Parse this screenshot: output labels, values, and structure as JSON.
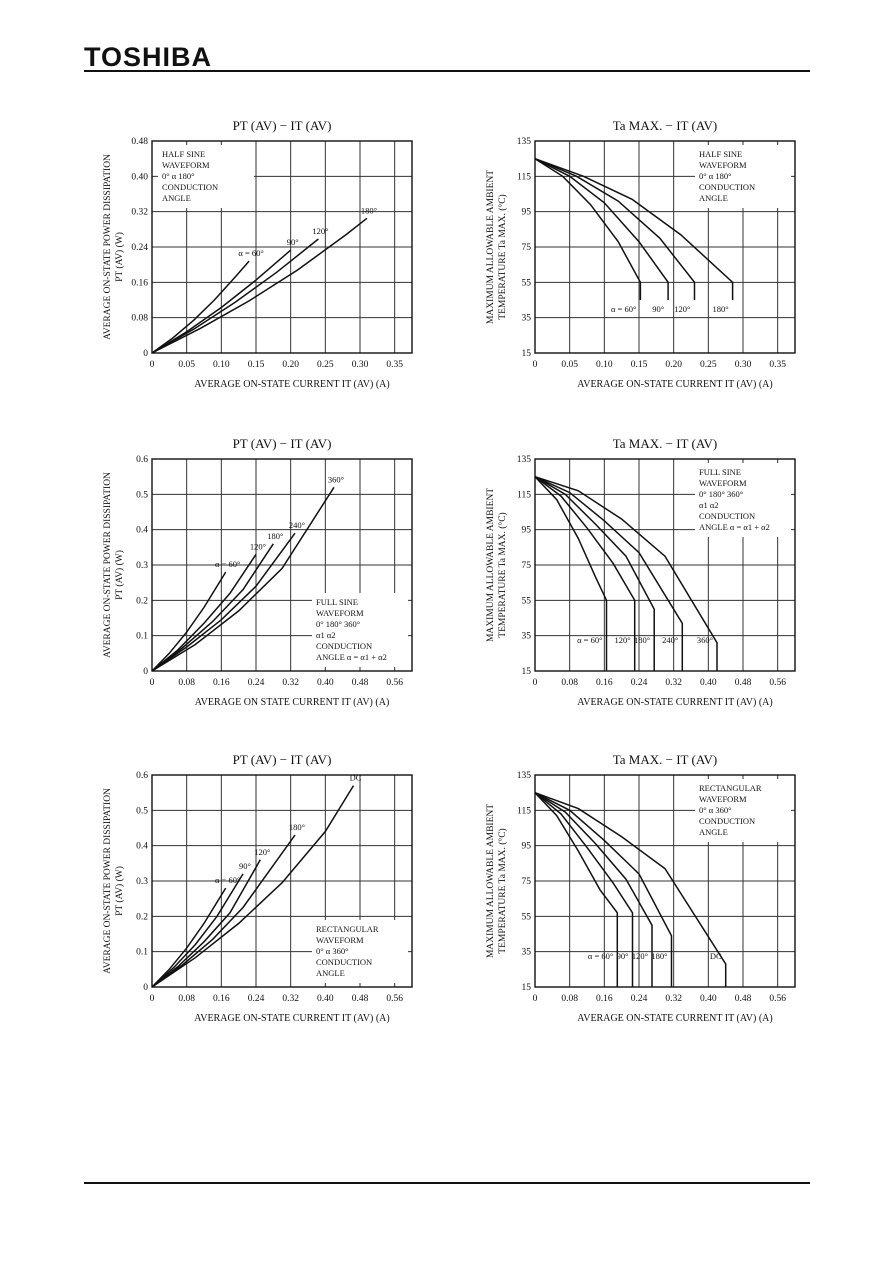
{
  "header": {
    "brand": "TOSHIBA"
  },
  "chart_data": [
    {
      "type": "line",
      "title": "PT (AV) − IT (AV)",
      "xlabel": "AVERAGE ON-STATE CURRENT  IT (AV)  (A)",
      "ylabel_lines": [
        "AVERAGE ON-STATE POWER DISSIPATION",
        "PT (AV)  (W)"
      ],
      "xlim": [
        0,
        0.375
      ],
      "ylim": [
        0,
        0.48
      ],
      "xticks": [
        0,
        0.05,
        0.1,
        0.15,
        0.2,
        0.25,
        0.3,
        0.35
      ],
      "xtick_labels": [
        "0",
        "0.05",
        "0.10",
        "0.15",
        "0.20",
        "0.25",
        "0.30",
        "0.35"
      ],
      "yticks": [
        0,
        0.08,
        0.16,
        0.24,
        0.32,
        0.4,
        0.48
      ],
      "ytick_labels": [
        "0",
        "0.08",
        "0.16",
        "0.24",
        "0.32",
        "0.40",
        "0.48"
      ],
      "annotation_lines": [
        "HALF SINE",
        "WAVEFORM",
        "0°  α  180°",
        "CONDUCTION",
        "ANGLE"
      ],
      "series": [
        {
          "label": "α = 60°",
          "x": [
            0,
            0.03,
            0.06,
            0.09,
            0.12,
            0.14
          ],
          "y": [
            0,
            0.034,
            0.074,
            0.12,
            0.172,
            0.208
          ]
        },
        {
          "label": "90°",
          "x": [
            0,
            0.05,
            0.1,
            0.15,
            0.2
          ],
          "y": [
            0,
            0.048,
            0.103,
            0.165,
            0.233
          ]
        },
        {
          "label": "120°",
          "x": [
            0,
            0.06,
            0.12,
            0.18,
            0.24
          ],
          "y": [
            0,
            0.054,
            0.115,
            0.183,
            0.258
          ]
        },
        {
          "label": "180°",
          "x": [
            0,
            0.07,
            0.14,
            0.21,
            0.28,
            0.31
          ],
          "y": [
            0,
            0.056,
            0.118,
            0.188,
            0.268,
            0.305
          ]
        }
      ]
    },
    {
      "type": "line",
      "title": "Ta MAX. − IT (AV)",
      "xlabel": "AVERAGE ON-STATE CURRENT  IT (AV)  (A)",
      "ylabel_lines": [
        "MAXIMUM ALLOWABLE AMBIENT",
        "TEMPERATURE  Ta MAX.  (°C)"
      ],
      "xlim": [
        0,
        0.375
      ],
      "ylim": [
        15,
        135
      ],
      "xticks": [
        0,
        0.05,
        0.1,
        0.15,
        0.2,
        0.25,
        0.3,
        0.35
      ],
      "xtick_labels": [
        "0",
        "0.05",
        "0.10",
        "0.15",
        "0.20",
        "0.25",
        "0.30",
        "0.35"
      ],
      "yticks": [
        15,
        35,
        55,
        75,
        95,
        115,
        135
      ],
      "ytick_labels": [
        "15",
        "35",
        "55",
        "75",
        "95",
        "115",
        "135"
      ],
      "annotation_lines": [
        "HALF SINE",
        "WAVEFORM",
        "0°  α  180°",
        "CONDUCTION",
        "ANGLE"
      ],
      "series": [
        {
          "label": "α = 60°",
          "x": [
            0,
            0.04,
            0.08,
            0.12,
            0.152,
            0.152
          ],
          "y": [
            125,
            115,
            99,
            78,
            55,
            45
          ]
        },
        {
          "label": "90°",
          "x": [
            0,
            0.05,
            0.1,
            0.15,
            0.192,
            0.192
          ],
          "y": [
            125,
            115,
            100,
            78,
            55,
            45
          ]
        },
        {
          "label": "120°",
          "x": [
            0,
            0.06,
            0.12,
            0.18,
            0.23,
            0.23
          ],
          "y": [
            125,
            115,
            101,
            80,
            55,
            45
          ]
        },
        {
          "label": "180°",
          "x": [
            0,
            0.07,
            0.14,
            0.21,
            0.285,
            0.285
          ],
          "y": [
            125,
            115,
            102,
            82,
            55,
            45
          ]
        }
      ]
    },
    {
      "type": "line",
      "title": "PT (AV) − IT (AV)",
      "xlabel": "AVERAGE ON STATE CURRENT  IT (AV)  (A)",
      "ylabel_lines": [
        "AVERAGE ON-STATE POWER DISSIPATION",
        "PT (AV)  (W)"
      ],
      "xlim": [
        0,
        0.6
      ],
      "ylim": [
        0,
        0.6
      ],
      "xticks": [
        0,
        0.08,
        0.16,
        0.24,
        0.32,
        0.4,
        0.48,
        0.56
      ],
      "xtick_labels": [
        "0",
        "0.08",
        "0.16",
        "0.24",
        "0.32",
        "0.40",
        "0.48",
        "0.56"
      ],
      "yticks": [
        0,
        0.1,
        0.2,
        0.3,
        0.4,
        0.5,
        0.6
      ],
      "ytick_labels": [
        "0",
        "0.1",
        "0.2",
        "0.3",
        "0.4",
        "0.5",
        "0.6"
      ],
      "annotation_lines": [
        "FULL SINE",
        "WAVEFORM",
        "0°  180°   360°",
        "α1     α2",
        "CONDUCTION",
        "ANGLE α = α1 + α2"
      ],
      "series": [
        {
          "label": "α = 60°",
          "x": [
            0,
            0.04,
            0.08,
            0.12,
            0.17
          ],
          "y": [
            0,
            0.05,
            0.11,
            0.18,
            0.28
          ]
        },
        {
          "label": "120°",
          "x": [
            0,
            0.06,
            0.12,
            0.18,
            0.24
          ],
          "y": [
            0,
            0.06,
            0.135,
            0.22,
            0.33
          ]
        },
        {
          "label": "180°",
          "x": [
            0,
            0.07,
            0.14,
            0.21,
            0.28
          ],
          "y": [
            0,
            0.065,
            0.14,
            0.23,
            0.36
          ]
        },
        {
          "label": "240°",
          "x": [
            0,
            0.08,
            0.16,
            0.24,
            0.33
          ],
          "y": [
            0,
            0.068,
            0.145,
            0.24,
            0.39
          ]
        },
        {
          "label": "360°",
          "x": [
            0,
            0.1,
            0.2,
            0.3,
            0.42
          ],
          "y": [
            0,
            0.075,
            0.17,
            0.29,
            0.52
          ]
        }
      ]
    },
    {
      "type": "line",
      "title": "Ta MAX. − IT (AV)",
      "xlabel": "AVERAGE ON-STATE CURRENT  IT (AV)  (A)",
      "ylabel_lines": [
        "MAXIMUM ALLOWABLE AMBIENT",
        "TEMPERATURE  Ta MAX.  (°C)"
      ],
      "xlim": [
        0,
        0.6
      ],
      "ylim": [
        15,
        135
      ],
      "xticks": [
        0,
        0.08,
        0.16,
        0.24,
        0.32,
        0.4,
        0.48,
        0.56
      ],
      "xtick_labels": [
        "0",
        "0.08",
        "0.16",
        "0.24",
        "0.32",
        "0.40",
        "0.48",
        "0.56"
      ],
      "yticks": [
        15,
        35,
        55,
        75,
        95,
        115,
        135
      ],
      "ytick_labels": [
        "15",
        "35",
        "55",
        "75",
        "95",
        "115",
        "135"
      ],
      "annotation_lines": [
        "FULL SINE",
        "WAVEFORM",
        "0°  180°   360°",
        "α1     α2",
        "CONDUCTION",
        "ANGLE α = α1 + α2"
      ],
      "series": [
        {
          "label": "α = 60°",
          "x": [
            0,
            0.05,
            0.1,
            0.14,
            0.165,
            0.165
          ],
          "y": [
            125,
            112,
            90,
            68,
            55,
            15
          ]
        },
        {
          "label": "120°",
          "x": [
            0,
            0.06,
            0.12,
            0.18,
            0.23,
            0.23
          ],
          "y": [
            125,
            114,
            96,
            76,
            55,
            15
          ]
        },
        {
          "label": "180°",
          "x": [
            0,
            0.07,
            0.14,
            0.21,
            0.275,
            0.275
          ],
          "y": [
            125,
            115,
            98,
            80,
            50,
            15
          ]
        },
        {
          "label": "240°",
          "x": [
            0,
            0.08,
            0.16,
            0.24,
            0.34,
            0.34
          ],
          "y": [
            125,
            116,
            100,
            82,
            42,
            15
          ]
        },
        {
          "label": "360°",
          "x": [
            0,
            0.1,
            0.2,
            0.3,
            0.42,
            0.42
          ],
          "y": [
            125,
            117,
            101,
            80,
            31,
            15
          ]
        }
      ]
    },
    {
      "type": "line",
      "title": "PT (AV) − IT (AV)",
      "xlabel": "AVERAGE ON-STATE CURRENT  IT (AV)  (A)",
      "ylabel_lines": [
        "AVERAGE ON-STATE POWER DISSIPATION",
        "PT (AV)  (W)"
      ],
      "xlim": [
        0,
        0.6
      ],
      "ylim": [
        0,
        0.6
      ],
      "xticks": [
        0,
        0.08,
        0.16,
        0.24,
        0.32,
        0.4,
        0.48,
        0.56
      ],
      "xtick_labels": [
        "0",
        "0.08",
        "0.16",
        "0.24",
        "0.32",
        "0.40",
        "0.48",
        "0.56"
      ],
      "yticks": [
        0,
        0.1,
        0.2,
        0.3,
        0.4,
        0.5,
        0.6
      ],
      "ytick_labels": [
        "0",
        "0.1",
        "0.2",
        "0.3",
        "0.4",
        "0.5",
        "0.6"
      ],
      "annotation_lines": [
        "RECTANGULAR",
        "WAVEFORM",
        "0°  α   360°",
        "CONDUCTION",
        "ANGLE"
      ],
      "series": [
        {
          "label": "α = 60°",
          "x": [
            0,
            0.04,
            0.08,
            0.12,
            0.17
          ],
          "y": [
            0,
            0.05,
            0.11,
            0.18,
            0.28
          ]
        },
        {
          "label": "90°",
          "x": [
            0,
            0.05,
            0.1,
            0.15,
            0.21
          ],
          "y": [
            0,
            0.055,
            0.12,
            0.2,
            0.32
          ]
        },
        {
          "label": "120°",
          "x": [
            0,
            0.06,
            0.12,
            0.18,
            0.25
          ],
          "y": [
            0,
            0.058,
            0.128,
            0.21,
            0.36
          ]
        },
        {
          "label": "180°",
          "x": [
            0,
            0.07,
            0.14,
            0.21,
            0.33
          ],
          "y": [
            0,
            0.062,
            0.135,
            0.225,
            0.43
          ]
        },
        {
          "label": "DC",
          "x": [
            0,
            0.1,
            0.2,
            0.3,
            0.4,
            0.465
          ],
          "y": [
            0,
            0.083,
            0.18,
            0.295,
            0.44,
            0.57
          ]
        }
      ]
    },
    {
      "type": "line",
      "title": "Ta MAX. − IT (AV)",
      "xlabel": "AVERAGE ON-STATE CURRENT  IT (AV)  (A)",
      "ylabel_lines": [
        "MAXIMUM ALLOWABLE AMBIENT",
        "TEMPERATURE  Ta MAX.  (°C)"
      ],
      "xlim": [
        0,
        0.6
      ],
      "ylim": [
        15,
        135
      ],
      "xticks": [
        0,
        0.08,
        0.16,
        0.24,
        0.32,
        0.4,
        0.48,
        0.56
      ],
      "xtick_labels": [
        "0",
        "0.08",
        "0.16",
        "0.24",
        "0.32",
        "0.40",
        "0.48",
        "0.56"
      ],
      "yticks": [
        15,
        35,
        55,
        75,
        95,
        115,
        135
      ],
      "ytick_labels": [
        "15",
        "35",
        "55",
        "75",
        "95",
        "115",
        "135"
      ],
      "annotation_lines": [
        "RECTANGULAR",
        "WAVEFORM",
        "0°  α   360°",
        "CONDUCTION",
        "ANGLE"
      ],
      "series": [
        {
          "label": "α = 60°",
          "x": [
            0,
            0.05,
            0.1,
            0.15,
            0.19,
            0.19
          ],
          "y": [
            125,
            112,
            92,
            70,
            57,
            15
          ]
        },
        {
          "label": "90°",
          "x": [
            0,
            0.06,
            0.12,
            0.18,
            0.225,
            0.225
          ],
          "y": [
            125,
            113,
            94,
            74,
            57,
            15
          ]
        },
        {
          "label": "120°",
          "x": [
            0,
            0.07,
            0.14,
            0.21,
            0.27,
            0.27
          ],
          "y": [
            125,
            114,
            96,
            76,
            50,
            15
          ]
        },
        {
          "label": "180°",
          "x": [
            0,
            0.08,
            0.16,
            0.24,
            0.315,
            0.315
          ],
          "y": [
            125,
            115,
            98,
            79,
            44,
            15
          ]
        },
        {
          "label": "DC",
          "x": [
            0,
            0.1,
            0.2,
            0.3,
            0.44,
            0.44
          ],
          "y": [
            125,
            116,
            100,
            82,
            28,
            15
          ]
        }
      ]
    }
  ]
}
